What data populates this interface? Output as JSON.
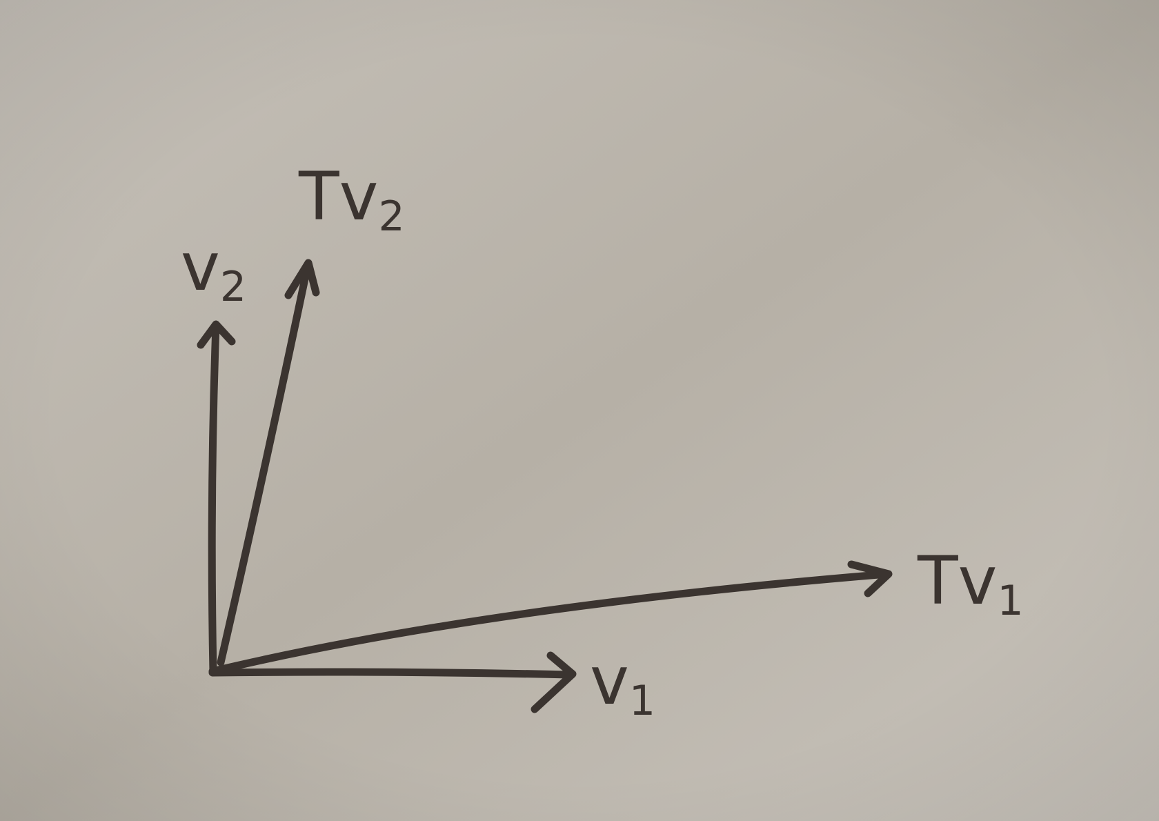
{
  "diagram": {
    "background": "#b8b2a9",
    "ink_color": "#3b3430",
    "vectors": [
      {
        "id": "v1",
        "name": "v",
        "subscript": "1"
      },
      {
        "id": "Tv1",
        "name": "Tv",
        "subscript": "1"
      },
      {
        "id": "v2",
        "name": "v",
        "subscript": "2"
      },
      {
        "id": "Tv2",
        "name": "Tv",
        "subscript": "2"
      }
    ]
  }
}
